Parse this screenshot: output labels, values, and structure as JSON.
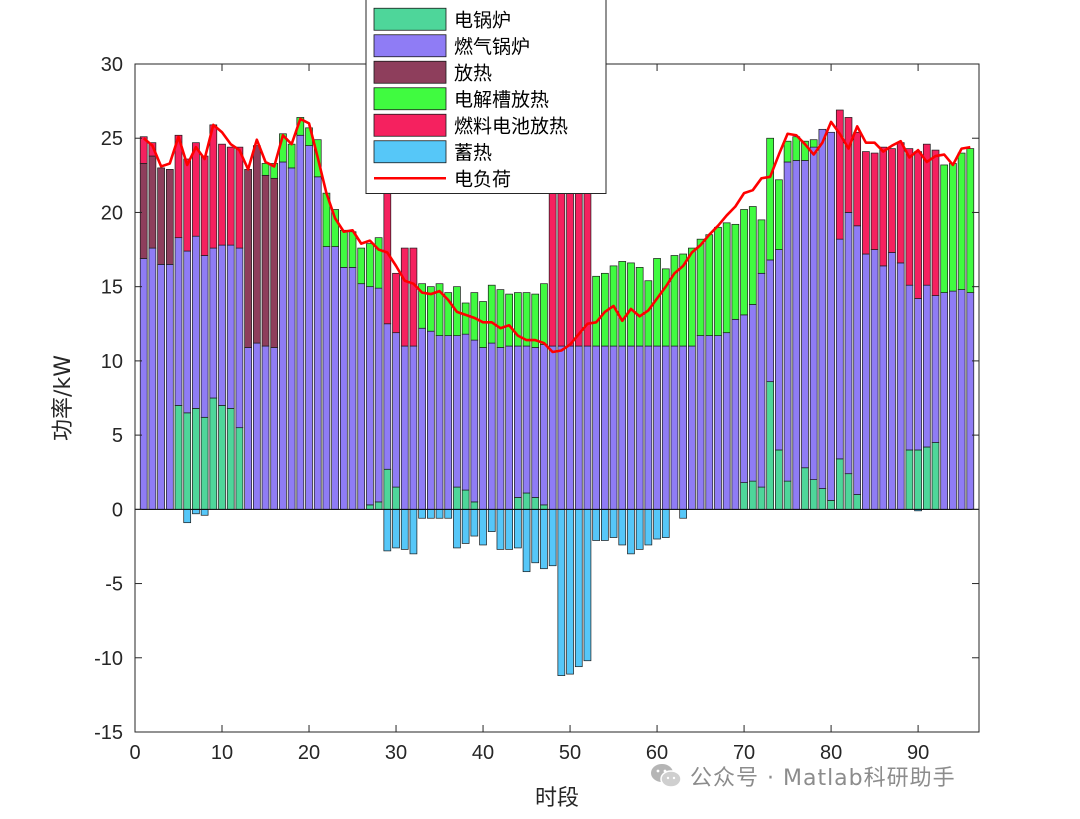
{
  "chart_data": {
    "type": "bar",
    "stacked": true,
    "xlabel": "时段",
    "ylabel": "功率/kW",
    "xlim": [
      0,
      97
    ],
    "ylim": [
      -15,
      30
    ],
    "xticks": [
      0,
      10,
      20,
      30,
      40,
      50,
      60,
      70,
      80,
      90
    ],
    "yticks": [
      -15,
      -10,
      -5,
      0,
      5,
      10,
      15,
      20,
      25,
      30
    ],
    "legend_position": "top-center",
    "x": [
      1,
      2,
      3,
      4,
      5,
      6,
      7,
      8,
      9,
      10,
      11,
      12,
      13,
      14,
      15,
      16,
      17,
      18,
      19,
      20,
      21,
      22,
      23,
      24,
      25,
      26,
      27,
      28,
      29,
      30,
      31,
      32,
      33,
      34,
      35,
      36,
      37,
      38,
      39,
      40,
      41,
      42,
      43,
      44,
      45,
      46,
      47,
      48,
      49,
      50,
      51,
      52,
      53,
      54,
      55,
      56,
      57,
      58,
      59,
      60,
      61,
      62,
      63,
      64,
      65,
      66,
      67,
      68,
      69,
      70,
      71,
      72,
      73,
      74,
      75,
      76,
      77,
      78,
      79,
      80,
      81,
      82,
      83,
      84,
      85,
      86,
      87,
      88,
      89,
      90,
      91,
      92,
      93,
      94,
      95,
      96
    ],
    "series": [
      {
        "name": "电锅炉",
        "color": "#4ed69a",
        "values": [
          0,
          0,
          0,
          0,
          7,
          6.5,
          6.8,
          6.2,
          7.5,
          7,
          6.8,
          5.5,
          0,
          0,
          0,
          0,
          0,
          0,
          0,
          0,
          0,
          0,
          0,
          0,
          0,
          0,
          0.3,
          0.5,
          2.7,
          1.5,
          0,
          0,
          0,
          0,
          0,
          0,
          1.5,
          1.3,
          0.5,
          0,
          0,
          0,
          0,
          0.8,
          1.1,
          0.8,
          0.3,
          0,
          0,
          0,
          0,
          0,
          0,
          0,
          0,
          0,
          0,
          0,
          0,
          0,
          0,
          0,
          0,
          0,
          0,
          0,
          0,
          0,
          0,
          1.8,
          1.9,
          1.5,
          8.6,
          4,
          1.9,
          0,
          2.8,
          2,
          1.4,
          0.6,
          3.4,
          2.4,
          1,
          0,
          0,
          0,
          0,
          0,
          4,
          4,
          4.2,
          4.5,
          0,
          0,
          0,
          0
        ]
      },
      {
        "name": "燃气锅炉",
        "color": "#8f7cf5",
        "values": [
          16.9,
          17.6,
          16.5,
          16.5,
          11.3,
          10.9,
          11.6,
          10.9,
          10.1,
          10.8,
          11.0,
          12.1,
          10.9,
          11.2,
          11.0,
          10.9,
          23.4,
          23,
          25.2,
          24.5,
          22.4,
          17.7,
          17.7,
          16.3,
          16.3,
          15.2,
          14.7,
          14.4,
          9.8,
          10.4,
          11,
          11,
          12.2,
          12,
          11.7,
          11.7,
          10.2,
          10.5,
          10.9,
          10.9,
          11.2,
          10.9,
          11,
          10.2,
          9.9,
          10.1,
          10.8,
          11,
          11,
          11,
          11,
          11,
          11,
          11,
          11,
          11,
          11,
          11,
          11,
          11,
          11,
          11,
          11,
          11,
          11.7,
          11.7,
          11.7,
          11.9,
          12.8,
          11.3,
          11.9,
          14.4,
          8.2,
          13.5,
          21.5,
          23.5,
          20.7,
          22.4,
          24.2,
          24.8,
          14.8,
          17.6,
          18.1,
          17.2,
          17.5,
          16.4,
          17.3,
          16.6,
          11.1,
          10.2,
          10.9,
          9.9,
          14.6,
          14.7,
          14.8,
          14.6
        ]
      },
      {
        "name": "放热",
        "color": "#8e3e5c",
        "values": [
          6.4,
          6.2,
          6.5,
          6.4,
          0,
          0,
          0,
          0,
          0,
          0,
          0,
          0,
          12,
          13.3,
          11.5,
          11.4,
          0,
          0,
          0,
          0,
          0,
          0,
          0,
          0,
          0,
          0,
          0,
          0,
          0,
          0,
          0,
          0,
          0,
          0,
          0,
          0,
          0,
          0,
          0,
          0,
          0,
          0,
          0,
          0,
          0,
          0,
          0,
          0,
          0,
          0,
          0,
          0,
          0,
          0,
          0,
          0,
          0,
          0,
          0,
          0,
          0,
          0,
          0,
          0,
          0,
          0,
          0,
          0,
          0,
          0,
          0,
          0,
          0,
          0,
          0,
          0,
          0,
          0,
          0,
          0,
          0,
          0,
          0,
          0,
          0,
          0,
          0,
          0,
          0,
          0,
          0,
          0,
          0,
          0,
          0,
          0
        ]
      },
      {
        "name": "电解槽放热",
        "color": "#40fb40",
        "values": [
          0,
          0,
          0,
          0,
          0,
          0,
          0,
          0,
          0,
          0,
          0,
          0,
          0,
          0,
          0.8,
          1,
          1.9,
          1.6,
          1.2,
          1.2,
          2.5,
          3.6,
          2.5,
          2.5,
          2.4,
          2.4,
          2.9,
          3.4,
          0,
          0,
          0,
          0,
          3,
          3,
          3.5,
          2.9,
          3.3,
          2.1,
          3.2,
          3.1,
          3.9,
          3.9,
          3.5,
          3.6,
          3.6,
          3.6,
          4.1,
          0,
          0,
          0,
          0,
          0,
          4.7,
          4.9,
          5.4,
          5.7,
          5.6,
          5.3,
          4.4,
          5.9,
          5.2,
          6.1,
          6.2,
          6.6,
          6.5,
          6.8,
          7.3,
          7.4,
          6.4,
          7.1,
          6.6,
          3.6,
          8.2,
          4.7,
          1.4,
          1.6,
          1.3,
          0.5,
          0,
          0,
          0,
          0,
          0,
          0,
          0,
          0,
          0,
          0,
          0,
          0,
          0,
          0,
          8.6,
          8.6,
          9.2,
          9.7
        ]
      },
      {
        "name": "燃料电池放热",
        "color": "#f5215f",
        "values": [
          1.8,
          0.9,
          0,
          0,
          6.9,
          6.2,
          6.3,
          6.7,
          8.3,
          6.8,
          6.6,
          6.8,
          0,
          0,
          0,
          0,
          0,
          0,
          0,
          0,
          0,
          0,
          0,
          0,
          0,
          0,
          0,
          0,
          9.5,
          4,
          6.6,
          6.6,
          0,
          0,
          0,
          0,
          0,
          0,
          0,
          0,
          0,
          0,
          0,
          0,
          0,
          0,
          0,
          11.2,
          12.2,
          12,
          12.6,
          13.2,
          0,
          0,
          0,
          0,
          0,
          0,
          0,
          0,
          0,
          0,
          0,
          0,
          0,
          0,
          0,
          0,
          0,
          0,
          0,
          0,
          0,
          0,
          0,
          0,
          0,
          0,
          0,
          0,
          8.7,
          6.4,
          6.3,
          6.9,
          6.5,
          8.0,
          7.0,
          8.1,
          9.2,
          9.9,
          9.5,
          9.8,
          0,
          0,
          0,
          0
        ]
      },
      {
        "name": "蓄热",
        "color": "#56c7f8",
        "values": [
          0,
          0,
          0,
          0,
          0,
          -0.9,
          -0.3,
          -0.4,
          0,
          0,
          0,
          0,
          0,
          0,
          0,
          0,
          0,
          0,
          0,
          0,
          0,
          0,
          0,
          0,
          0,
          0,
          0,
          0,
          -2.8,
          -2.6,
          -2.7,
          -3,
          -0.6,
          -0.6,
          -0.6,
          -0.6,
          -2.6,
          -2.3,
          -1.8,
          -2.4,
          -1.5,
          -2.7,
          -2.7,
          -2.6,
          -4.2,
          -3.6,
          -4,
          -3.8,
          -11.2,
          -11.1,
          -10.6,
          -10.2,
          -2.1,
          -2.1,
          -1.9,
          -2.4,
          -3,
          -2.7,
          -2.4,
          -2,
          -1.9,
          0,
          -0.6,
          0,
          0,
          0,
          0,
          0,
          0,
          0,
          0,
          0,
          0,
          0,
          0,
          0,
          0,
          0,
          0,
          0,
          0,
          0,
          0,
          0,
          0,
          0,
          0,
          0,
          0,
          -0.1,
          0,
          0,
          0,
          0,
          0,
          0
        ]
      },
      {
        "name": "电负荷",
        "color": "#ff0000",
        "type": "line",
        "values": [
          25,
          24.5,
          23.1,
          23.3,
          25.1,
          23.2,
          24.4,
          23.6,
          25.9,
          25.4,
          24.6,
          24.2,
          22.9,
          24.9,
          23.4,
          23.1,
          25.2,
          24.6,
          26.3,
          26,
          23.7,
          21.3,
          19.6,
          18.7,
          18.8,
          17.9,
          18.1,
          17.5,
          17.3,
          16.4,
          15.4,
          15.2,
          14.6,
          14.5,
          14.7,
          14.1,
          13.3,
          13.1,
          12.9,
          12.6,
          12.6,
          12.2,
          12.4,
          11.7,
          11.4,
          11.4,
          11.2,
          10.6,
          10.7,
          11.1,
          11.8,
          12.5,
          12.6,
          13.3,
          13.7,
          12.7,
          13.5,
          13,
          13.4,
          14.2,
          15,
          15.9,
          16.4,
          17.3,
          17.8,
          18.5,
          19.1,
          19.8,
          20.4,
          21.3,
          21.5,
          22.3,
          22.4,
          23.9,
          25.3,
          25.2,
          24.6,
          23.9,
          24.7,
          26.1,
          25.3,
          24.3,
          25.8,
          24.7,
          24.7,
          24.1,
          24.5,
          24.8,
          23.7,
          24.2,
          23.4,
          23.8,
          23.9,
          23.2,
          24.3,
          24.4
        ]
      }
    ]
  },
  "watermark": {
    "icon": "wechat-icon",
    "text": "公众号 · Matlab科研助手"
  }
}
